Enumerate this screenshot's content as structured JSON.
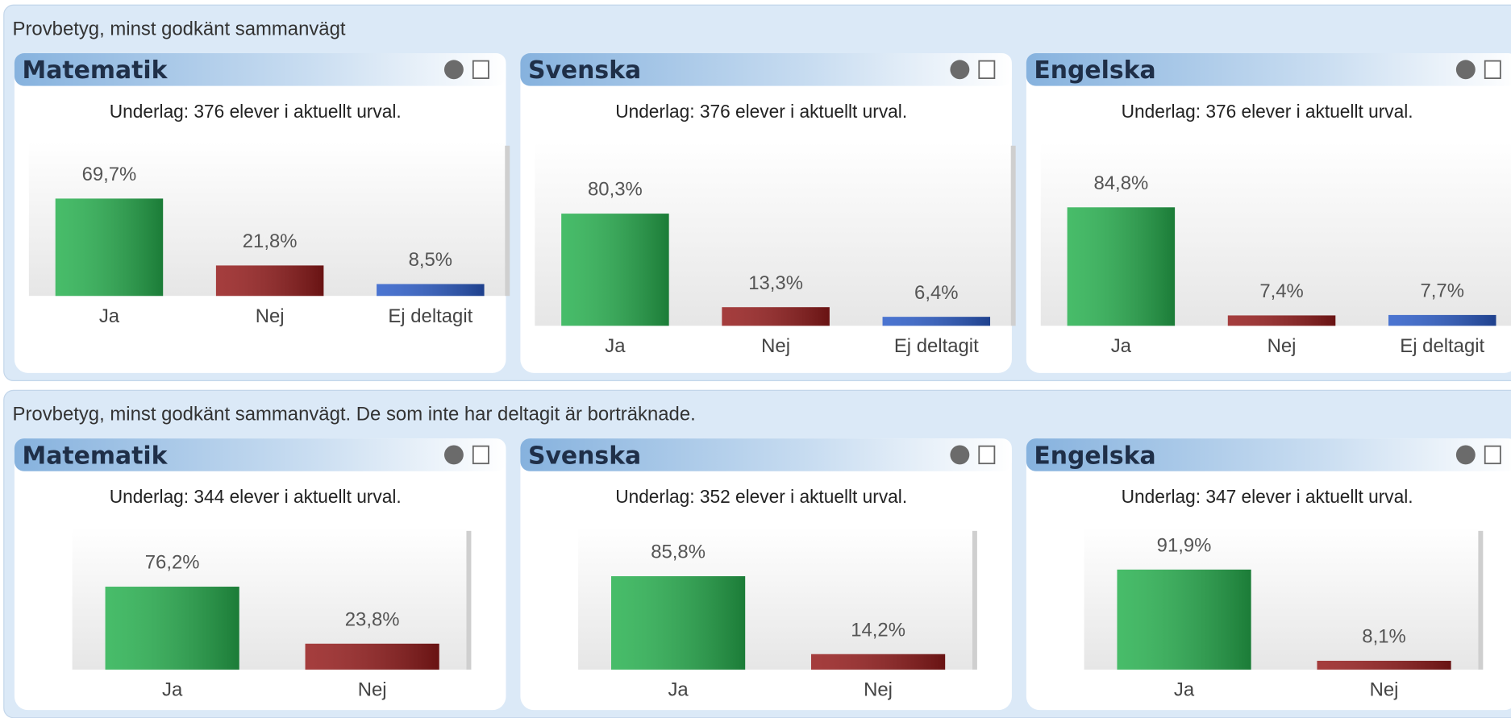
{
  "sections": [
    {
      "title": "Provbetyg, minst godkänt sammanvägt",
      "panels": [
        {
          "title": "Matematik",
          "subtitle": "Underlag: 376 elever i aktuellt urval.",
          "chart_data": {
            "type": "bar",
            "categories": [
              "Ja",
              "Nej",
              "Ej deltagit"
            ],
            "values": [
              69.7,
              21.8,
              8.5
            ],
            "value_labels": [
              "69,7%",
              "21,8%",
              "8,5%"
            ],
            "colors": [
              "#27b14f",
              "#951b1b",
              "#2b5cc9"
            ]
          }
        },
        {
          "title": "Svenska",
          "subtitle": "Underlag: 376 elever i aktuellt urval.",
          "chart_data": {
            "type": "bar",
            "categories": [
              "Ja",
              "Nej",
              "Ej deltagit"
            ],
            "values": [
              80.3,
              13.3,
              6.4
            ],
            "value_labels": [
              "80,3%",
              "13,3%",
              "6,4%"
            ],
            "colors": [
              "#27b14f",
              "#951b1b",
              "#2b5cc9"
            ]
          }
        },
        {
          "title": "Engelska",
          "subtitle": "Underlag: 376 elever i aktuellt urval.",
          "chart_data": {
            "type": "bar",
            "categories": [
              "Ja",
              "Nej",
              "Ej deltagit"
            ],
            "values": [
              84.8,
              7.4,
              7.7
            ],
            "value_labels": [
              "84,8%",
              "7,4%",
              "7,7%"
            ],
            "colors": [
              "#27b14f",
              "#951b1b",
              "#2b5cc9"
            ]
          }
        }
      ]
    },
    {
      "title": "Provbetyg, minst godkänt sammanvägt. De som inte har deltagit är borträknade.",
      "panels": [
        {
          "title": "Matematik",
          "subtitle": "Underlag: 344 elever i aktuellt urval.",
          "chart_data": {
            "type": "bar",
            "categories": [
              "Ja",
              "Nej"
            ],
            "values": [
              76.2,
              23.8
            ],
            "value_labels": [
              "76,2%",
              "23,8%"
            ],
            "colors": [
              "#27b14f",
              "#951b1b"
            ]
          }
        },
        {
          "title": "Svenska",
          "subtitle": "Underlag: 352 elever i aktuellt urval.",
          "chart_data": {
            "type": "bar",
            "categories": [
              "Ja",
              "Nej"
            ],
            "values": [
              85.8,
              14.2
            ],
            "value_labels": [
              "85,8%",
              "14,2%"
            ],
            "colors": [
              "#27b14f",
              "#951b1b"
            ]
          }
        },
        {
          "title": "Engelska",
          "subtitle": "Underlag: 347 elever i aktuellt urval.",
          "chart_data": {
            "type": "bar",
            "categories": [
              "Ja",
              "Nej"
            ],
            "values": [
              91.9,
              8.1
            ],
            "value_labels": [
              "91,9%",
              "8,1%"
            ],
            "colors": [
              "#27b14f",
              "#951b1b"
            ]
          }
        }
      ]
    }
  ]
}
